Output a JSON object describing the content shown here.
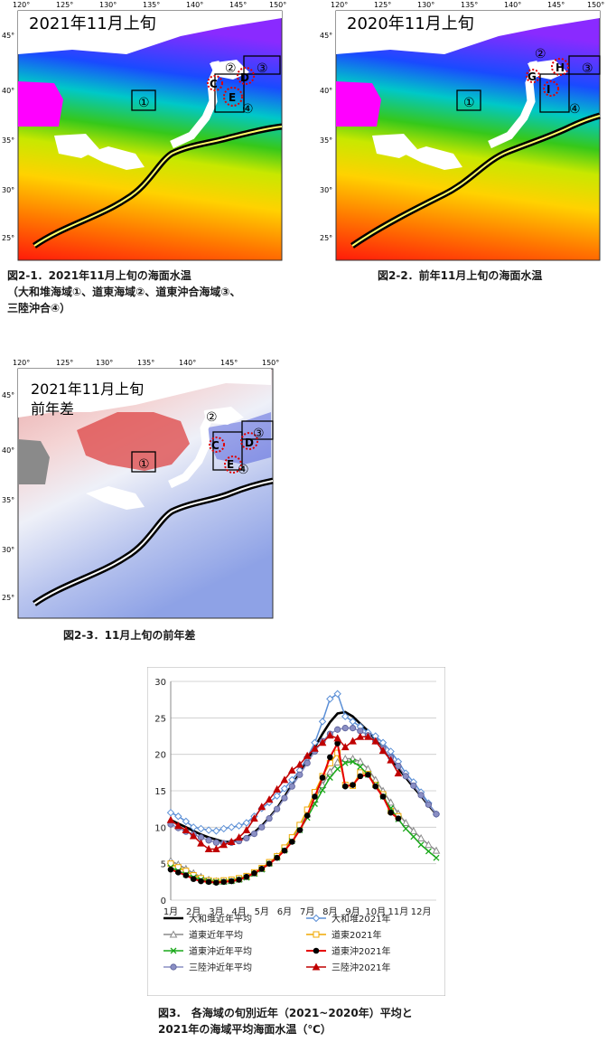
{
  "axis_lon_ticks": [
    "120°",
    "125°",
    "130°",
    "135°",
    "140°",
    "145°",
    "150°"
  ],
  "axis_lat_ticks": [
    "45°",
    "40°",
    "35°",
    "30°",
    "25°"
  ],
  "map1": {
    "title": "2021年11月上旬",
    "region_labels": [
      "①",
      "②",
      "③",
      "④",
      "C",
      "D",
      "E"
    ],
    "caption_lines": [
      "図2-1．2021年11月上旬の海面水温",
      "（大和堆海域①、道東海域②、道東沖合海域③、",
      "三陸沖合④）"
    ]
  },
  "map2": {
    "title": "2020年11月上旬",
    "region_labels": [
      "①",
      "②",
      "③",
      "④",
      "G",
      "H",
      "I"
    ],
    "caption": "図2-2．前年11月上旬の海面水温"
  },
  "map3": {
    "title_lines": [
      "2021年11月上旬",
      "前年差"
    ],
    "region_labels": [
      "①",
      "②",
      "③",
      "④",
      "C",
      "D",
      "E"
    ],
    "caption": "図2-3．11月上旬の前年差"
  },
  "colors": {
    "warm": "#ff2a10",
    "orange": "#ff8a00",
    "yellow": "#ffe800",
    "green": "#22c21a",
    "cyan": "#00c8d8",
    "blue": "#2a3aff",
    "purple": "#8a2aff",
    "magenta": "#ff00ff",
    "land": "#ffffff",
    "diff_red": "#d83a3a",
    "diff_blue": "#3a4ad8"
  },
  "chart_data": {
    "type": "line",
    "xlabel": "",
    "ylabel": "",
    "ylim": [
      0,
      30
    ],
    "y_ticks": [
      0,
      5,
      10,
      15,
      20,
      25,
      30
    ],
    "x_tick_labels": [
      "1月",
      "2月",
      "3月",
      "4月",
      "5月",
      "6月",
      "7月",
      "8月",
      "9月",
      "10月",
      "11月",
      "12月"
    ],
    "x_range": [
      1,
      12.67
    ],
    "series": [
      {
        "name": "大和堆近年平均",
        "color": "#000000",
        "marker": "none",
        "width": 2.6,
        "x": [
          1,
          1.33,
          1.67,
          2,
          2.33,
          2.67,
          3,
          3.33,
          3.67,
          4,
          4.33,
          4.67,
          5,
          5.33,
          5.67,
          6,
          6.33,
          6.67,
          7,
          7.33,
          7.67,
          8,
          8.33,
          8.67,
          9,
          9.33,
          9.67,
          10,
          10.33,
          10.67,
          11,
          11.33,
          11.67,
          12,
          12.33,
          12.67
        ],
        "y": [
          11.0,
          10.5,
          10.0,
          9.5,
          9.0,
          8.6,
          8.3,
          8.0,
          8.0,
          8.2,
          8.6,
          9.3,
          10.2,
          11.3,
          12.6,
          14.2,
          15.8,
          17.4,
          19.2,
          21.0,
          22.8,
          24.4,
          25.6,
          25.8,
          25.2,
          24.2,
          23.2,
          22.0,
          20.7,
          19.4,
          18.1,
          16.8,
          15.5,
          14.3,
          13.0,
          11.8
        ]
      },
      {
        "name": "大和堆2021年",
        "color": "#5b8fd6",
        "marker": "diamond",
        "width": 1.5,
        "x": [
          1,
          1.33,
          1.67,
          2,
          2.33,
          2.67,
          3,
          3.33,
          3.67,
          4,
          4.33,
          4.67,
          5,
          5.33,
          5.67,
          6,
          6.33,
          6.67,
          7,
          7.33,
          7.67,
          8,
          8.33,
          8.67,
          9,
          9.33,
          9.67,
          10,
          10.33,
          10.67,
          11,
          11.33,
          11.67,
          12,
          12.33,
          12.67
        ],
        "y": [
          12.0,
          11.5,
          10.8,
          10.0,
          9.8,
          9.6,
          9.5,
          9.8,
          10.0,
          10.2,
          10.6,
          11.5,
          12.6,
          13.4,
          14.3,
          15.3,
          16.5,
          17.8,
          19.6,
          21.6,
          24.5,
          27.6,
          28.3,
          25.2,
          24.5,
          23.8,
          23.0,
          22.5,
          21.6,
          20.4,
          19.0,
          17.4,
          16.2,
          14.8,
          13.3,
          11.8
        ]
      },
      {
        "name": "道東近年平均",
        "color": "#8a8a8a",
        "marker": "triangle",
        "width": 1.5,
        "x": [
          1,
          1.33,
          1.67,
          2,
          2.33,
          2.67,
          3,
          3.33,
          3.67,
          4,
          4.33,
          4.67,
          5,
          5.33,
          5.67,
          6,
          6.33,
          6.67,
          7,
          7.33,
          7.67,
          8,
          8.33,
          8.67,
          9,
          9.33,
          9.67,
          10,
          10.33,
          10.67,
          11,
          11.33,
          11.67,
          12,
          12.33,
          12.67
        ],
        "y": [
          5.4,
          4.9,
          4.3,
          3.7,
          3.2,
          2.8,
          2.6,
          2.6,
          2.7,
          2.9,
          3.2,
          3.7,
          4.3,
          5.1,
          6.0,
          7.0,
          8.4,
          10.0,
          11.8,
          13.8,
          15.8,
          17.6,
          18.9,
          19.4,
          19.4,
          19.0,
          18.0,
          16.5,
          15.0,
          13.4,
          11.9,
          10.6,
          9.5,
          8.5,
          7.6,
          6.8
        ]
      },
      {
        "name": "道東2021年",
        "color": "#f0a800",
        "marker": "square",
        "width": 1.5,
        "x": [
          1,
          1.33,
          1.67,
          2,
          2.33,
          2.67,
          3,
          3.33,
          3.67,
          4,
          4.33,
          4.67,
          5,
          5.33,
          5.67,
          6,
          6.33,
          6.67,
          7,
          7.33,
          7.67,
          8,
          8.33,
          8.67,
          9,
          9.33,
          9.67,
          10,
          10.33,
          10.67,
          11
        ],
        "y": [
          5.0,
          4.5,
          4.0,
          3.4,
          3.0,
          2.7,
          2.6,
          2.7,
          2.8,
          3.0,
          3.3,
          3.8,
          4.4,
          5.2,
          6.0,
          7.2,
          8.6,
          10.3,
          12.4,
          14.8,
          17.0,
          18.8,
          20.2,
          15.8,
          15.7,
          17.5,
          17.3,
          15.8,
          14.5,
          12.2,
          11.5
        ]
      },
      {
        "name": "道東沖近年平均",
        "color": "#1aa81a",
        "marker": "x",
        "width": 1.5,
        "x": [
          1,
          1.33,
          1.67,
          2,
          2.33,
          2.67,
          3,
          3.33,
          3.67,
          4,
          4.33,
          4.67,
          5,
          5.33,
          5.67,
          6,
          6.33,
          6.67,
          7,
          7.33,
          7.67,
          8,
          8.33,
          8.67,
          9,
          9.33,
          9.67,
          10,
          10.33,
          10.67,
          11,
          11.33,
          11.67,
          12,
          12.33,
          12.67
        ],
        "y": [
          4.5,
          4.0,
          3.5,
          3.1,
          2.8,
          2.6,
          2.5,
          2.5,
          2.6,
          2.8,
          3.1,
          3.6,
          4.2,
          5.0,
          5.8,
          6.8,
          8.1,
          9.6,
          11.3,
          13.2,
          15.1,
          16.8,
          18.0,
          18.8,
          19.0,
          18.3,
          17.2,
          15.8,
          14.2,
          12.6,
          11.1,
          9.8,
          8.7,
          7.6,
          6.7,
          5.8
        ]
      },
      {
        "name": "道東沖2021年",
        "color": "#e60000",
        "marker": "dot",
        "width": 2.0,
        "x": [
          1,
          1.33,
          1.67,
          2,
          2.33,
          2.67,
          3,
          3.33,
          3.67,
          4,
          4.33,
          4.67,
          5,
          5.33,
          5.67,
          6,
          6.33,
          6.67,
          7,
          7.33,
          7.67,
          8,
          8.33,
          8.67,
          9,
          9.33,
          9.67,
          10,
          10.33,
          10.67,
          11
        ],
        "y": [
          4.2,
          3.8,
          3.4,
          2.9,
          2.6,
          2.5,
          2.4,
          2.5,
          2.6,
          2.8,
          3.2,
          3.7,
          4.3,
          5.0,
          5.8,
          6.8,
          8.0,
          9.6,
          11.6,
          14.2,
          16.8,
          19.6,
          21.5,
          15.6,
          15.8,
          17.0,
          17.2,
          15.6,
          14.2,
          12.0,
          11.2
        ]
      },
      {
        "name": "三陸沖近年平均",
        "color": "#8a8fc4",
        "marker": "circle",
        "width": 1.5,
        "x": [
          1,
          1.33,
          1.67,
          2,
          2.33,
          2.67,
          3,
          3.33,
          3.67,
          4,
          4.33,
          4.67,
          5,
          5.33,
          5.67,
          6,
          6.33,
          6.67,
          7,
          7.33,
          7.67,
          8,
          8.33,
          8.67,
          9,
          9.33,
          9.67,
          10,
          10.33,
          10.67,
          11,
          11.33,
          11.67,
          12,
          12.33,
          12.67
        ],
        "y": [
          10.4,
          9.9,
          9.4,
          9.0,
          8.6,
          8.2,
          7.9,
          7.8,
          7.9,
          8.1,
          8.5,
          9.1,
          10.0,
          11.2,
          12.5,
          14.0,
          15.6,
          17.2,
          18.8,
          20.4,
          21.8,
          22.8,
          23.4,
          23.6,
          23.6,
          23.2,
          22.6,
          21.8,
          20.8,
          19.6,
          18.4,
          17.0,
          15.7,
          14.4,
          13.1,
          11.8
        ]
      },
      {
        "name": "三陸沖2021年",
        "color": "#c00000",
        "marker": "triangle-filled",
        "width": 1.5,
        "x": [
          1,
          1.33,
          1.67,
          2,
          2.33,
          2.67,
          3,
          3.33,
          3.67,
          4,
          4.33,
          4.67,
          5,
          5.33,
          5.67,
          6,
          6.33,
          6.67,
          7,
          7.33,
          7.67,
          8,
          8.33,
          8.67,
          9,
          9.33,
          9.67,
          10,
          10.33,
          10.67,
          11
        ],
        "y": [
          11.0,
          10.2,
          9.6,
          8.8,
          7.8,
          7.0,
          7.0,
          7.6,
          8.0,
          8.6,
          9.6,
          11.2,
          12.8,
          13.8,
          15.2,
          16.5,
          17.8,
          18.6,
          19.8,
          20.8,
          21.6,
          22.6,
          22.2,
          21.0,
          21.8,
          22.4,
          22.4,
          21.8,
          20.5,
          19.2,
          17.4
        ]
      }
    ]
  },
  "chart_caption_lines": [
    "図3.　各海域の旬別近年（2021~2020年）平均と",
    "2021年の海域平均海面水温（℃）"
  ]
}
